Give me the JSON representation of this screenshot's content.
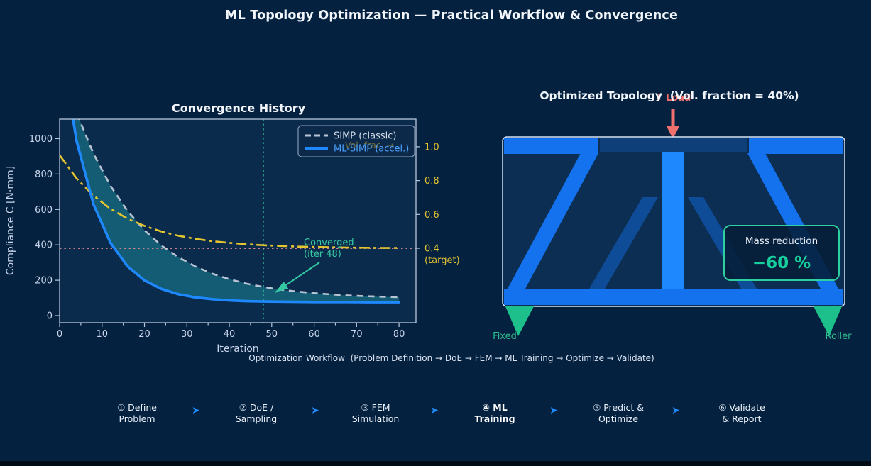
{
  "header": {
    "title": "ML Topology Optimization — Practical Workflow & Convergence"
  },
  "chart_data": {
    "type": "line",
    "title": "Convergence History",
    "xlabel": "Iteration",
    "ylabel_left": "Compliance C [N·mm]",
    "ylabel_right_ticks_color": "#E3C530",
    "x": [
      0,
      4,
      8,
      12,
      16,
      20,
      24,
      28,
      32,
      36,
      40,
      44,
      48,
      52,
      56,
      60,
      64,
      68,
      72,
      76,
      80
    ],
    "series": [
      {
        "name": "SIMP (classic)",
        "axis": "left",
        "style": "dashed-gray",
        "values": [
          1445,
          1146,
          914,
          733,
          592,
          482,
          396,
          330,
          278,
          237,
          206,
          181,
          162,
          147,
          136,
          127,
          120,
          114,
          110,
          107,
          104
        ]
      },
      {
        "name": "ML-SIMP (accel.)",
        "axis": "left",
        "style": "solid-blue",
        "values": [
          1576,
          986,
          628,
          411,
          279,
          199,
          151,
          121,
          103,
          93,
          86,
          82,
          80,
          79,
          78,
          77,
          77,
          77,
          76,
          76,
          76
        ]
      },
      {
        "name": "Vol. frac. →",
        "axis": "right",
        "style": "dashdot-yellow",
        "values": [
          0.95,
          0.813,
          0.711,
          0.633,
          0.575,
          0.532,
          0.499,
          0.474,
          0.456,
          0.442,
          0.432,
          0.424,
          0.418,
          0.414,
          0.41,
          0.408,
          0.406,
          0.404,
          0.403,
          0.402,
          0.402
        ]
      }
    ],
    "legend": [
      "SIMP (classic)",
      "ML-SIMP (accel.)"
    ],
    "legend_position": "upper right",
    "vol_frac_label": "Vol. frac. →",
    "xlim": [
      0,
      84
    ],
    "ylim_left": [
      -40,
      1110
    ],
    "ylim_right": [
      -0.04,
      1.163
    ],
    "xticks": [
      0,
      10,
      20,
      30,
      40,
      50,
      60,
      70,
      80
    ],
    "yticks_left": [
      0,
      200,
      400,
      600,
      800,
      1000
    ],
    "yticks_right": [
      0.4,
      0.6,
      0.8,
      1.0
    ],
    "target_tick_note": "(target)",
    "target_value": 0.4,
    "converged_iter": 48,
    "annotation": {
      "line1": "Converged",
      "line2": "(iter 48)"
    },
    "grid": false
  },
  "topology": {
    "title": "Optimized Topology  (Vol. fraction = 40%)",
    "load_label": "↓ Load",
    "mass_box": {
      "label": "Mass reduction",
      "value": "−60 %"
    },
    "supports": {
      "left": "Fixed",
      "right": "Roller"
    }
  },
  "workflow": {
    "caption": "Optimization Workflow  (Problem Definition → DoE → FEM → ML Training → Optimize → Validate)",
    "arrow": "➤",
    "steps": [
      {
        "line1": "① Define",
        "line2": "Problem"
      },
      {
        "line1": "② DoE /",
        "line2": "Sampling"
      },
      {
        "line1": "③ FEM",
        "line2": "Simulation"
      },
      {
        "line1": "④ ML",
        "line2": "Training"
      },
      {
        "line1": "⑤ Predict &",
        "line2": "Optimize"
      },
      {
        "line1": "⑥ Validate",
        "line2": "& Report"
      }
    ]
  },
  "colors": {
    "background": "#042140",
    "plot_bg": "#0B2B4D",
    "panel_bg": "#0C2E52",
    "bright_blue": "#1E88FF",
    "member_blue": "#1472EE",
    "gray_dash": "#B9C4D4",
    "yellow": "#E3C530",
    "teal": "#34C9A3",
    "pink": "#E08A96",
    "green": "#1DBF8B",
    "red": "#F0706E",
    "tick_text": "#C9D5EA",
    "spine": "#B9C7DD",
    "fill_between": "rgba(32,160,170,0.42)"
  }
}
